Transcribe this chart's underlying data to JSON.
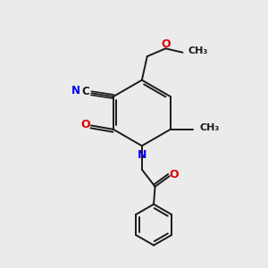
{
  "bg_color": "#ebebeb",
  "bond_color": "#1a1a1a",
  "N_color": "#0000ee",
  "O_color": "#dd0000",
  "C_color": "#1a1a1a",
  "line_width": 1.4,
  "figsize": [
    3.0,
    3.0
  ],
  "dpi": 100,
  "xlim": [
    0,
    10
  ],
  "ylim": [
    0,
    10
  ]
}
